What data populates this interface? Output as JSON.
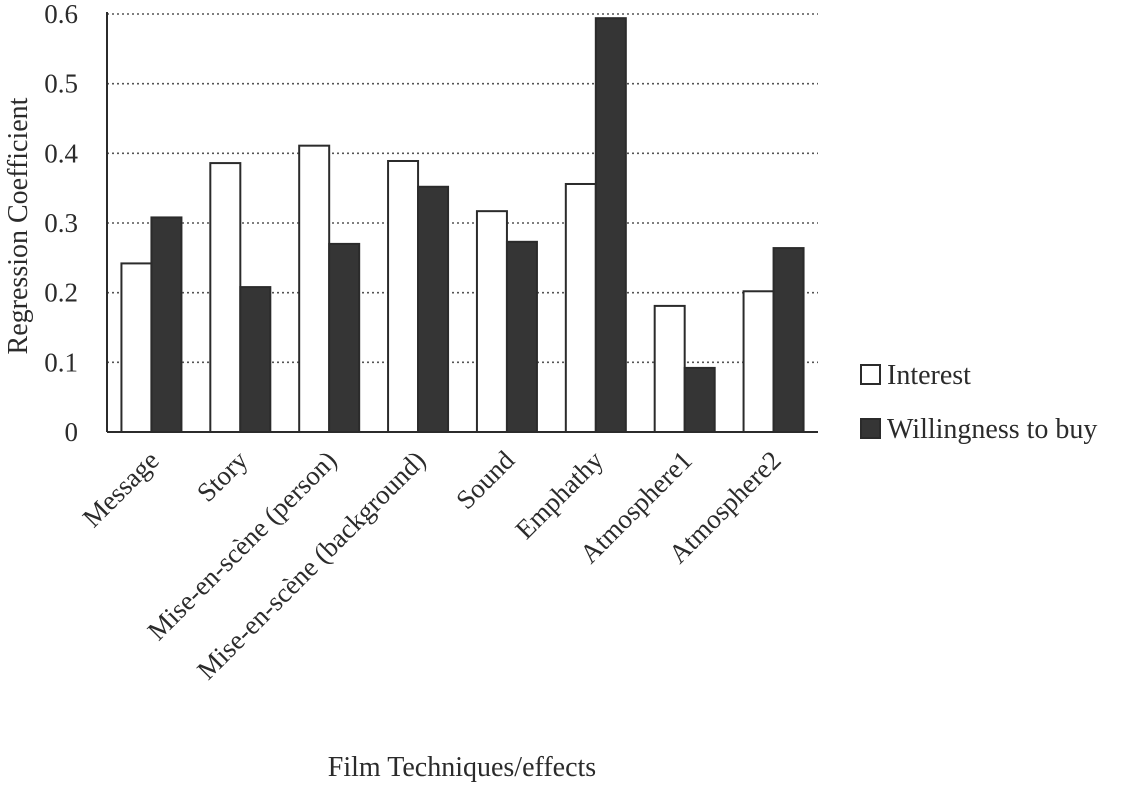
{
  "chart_data": {
    "type": "bar",
    "title": "",
    "xlabel": "Film Techniques/effects",
    "ylabel": "Regression Coefficient",
    "ylim": [
      0,
      0.6
    ],
    "yticks": [
      "0",
      "0.1",
      "0.2",
      "0.3",
      "0.4",
      "0.5",
      "0.6"
    ],
    "grid": true,
    "legend_position": "right",
    "categories": [
      "Message",
      "Story",
      "Mise-en-scène (person)",
      "Mise-en-scène (background)",
      "Sound",
      "Emphathy",
      "Atmosphere1",
      "Atmosphere2"
    ],
    "series": [
      {
        "name": "Interest",
        "color": "#ffffff",
        "values": [
          0.242,
          0.386,
          0.411,
          0.389,
          0.317,
          0.356,
          0.181,
          0.202
        ]
      },
      {
        "name": "Willingness to buy",
        "color": "#353535",
        "values": [
          0.308,
          0.208,
          0.27,
          0.352,
          0.273,
          0.594,
          0.092,
          0.264
        ]
      }
    ]
  }
}
